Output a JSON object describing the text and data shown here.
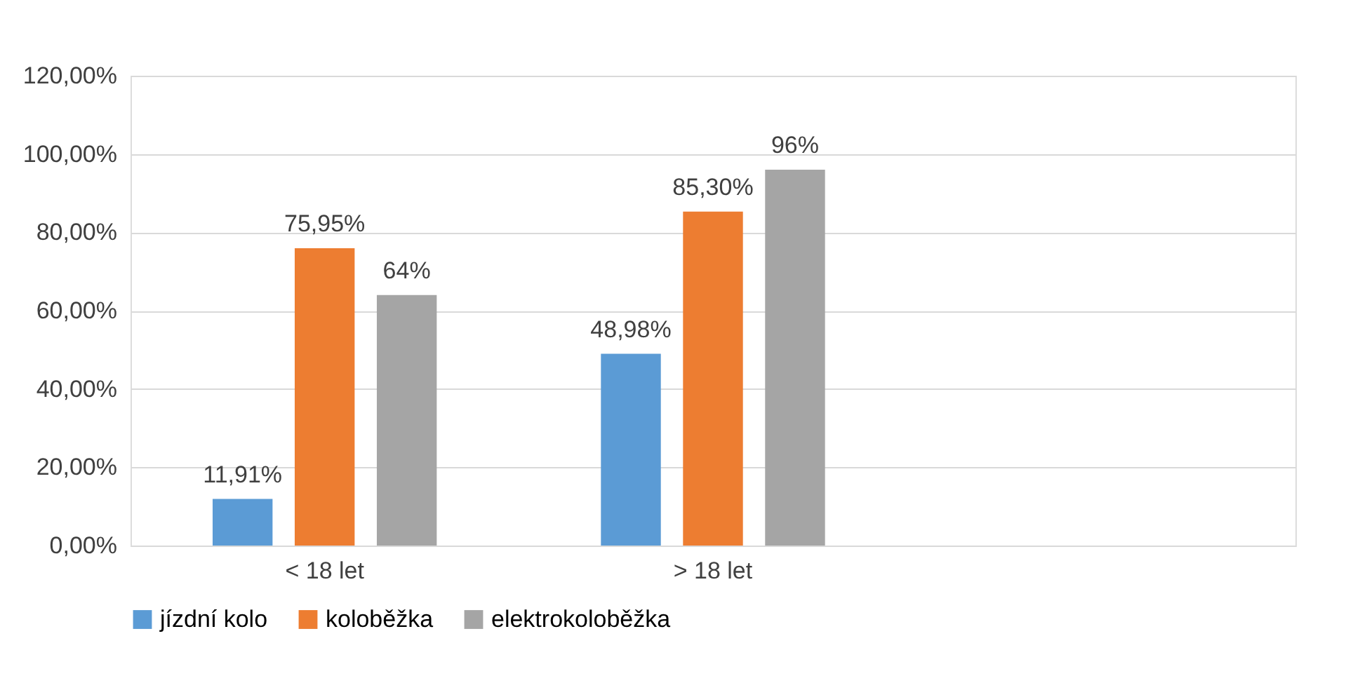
{
  "chart_data": {
    "type": "bar",
    "categories": [
      "< 18 let",
      "> 18 let",
      null
    ],
    "series": [
      {
        "name": "jízdní kolo",
        "color": "#5b9bd5",
        "values": [
          11.91,
          48.98,
          null
        ],
        "value_labels": [
          "11,91%",
          "48,98%",
          null
        ]
      },
      {
        "name": "koloběžka",
        "color": "#ed7d31",
        "values": [
          75.95,
          85.3,
          null
        ],
        "value_labels": [
          "75,95%",
          "85,30%",
          null
        ]
      },
      {
        "name": "elektrokoloběžka",
        "color": "#a5a5a5",
        "values": [
          64,
          96,
          null
        ],
        "value_labels": [
          "64%",
          "96%",
          null
        ]
      }
    ],
    "ylim": [
      0,
      120
    ],
    "yticks": [
      {
        "value": 0,
        "label": "0,00%"
      },
      {
        "value": 20,
        "label": "20,00%"
      },
      {
        "value": 40,
        "label": "40,00%"
      },
      {
        "value": 60,
        "label": "60,00%"
      },
      {
        "value": 80,
        "label": "80,00%"
      },
      {
        "value": 100,
        "label": "100,00%"
      },
      {
        "value": 120,
        "label": "120,00%"
      }
    ],
    "grid": "y",
    "legend": "bottom"
  }
}
